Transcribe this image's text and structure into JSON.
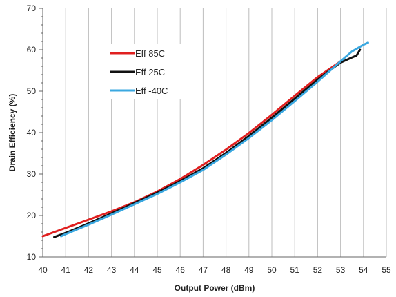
{
  "chart_data": {
    "type": "line",
    "title": "",
    "xlabel": "Output Power (dBm)",
    "ylabel": "Drain Efficiency (%)",
    "xlim": [
      40,
      55
    ],
    "ylim": [
      10,
      70
    ],
    "x_ticks": [
      40,
      41,
      42,
      43,
      44,
      45,
      46,
      47,
      48,
      49,
      50,
      51,
      52,
      53,
      54,
      55
    ],
    "y_ticks": [
      10,
      20,
      30,
      40,
      50,
      60,
      70
    ],
    "grid": {
      "vertical": true,
      "horizontal": false
    },
    "legend_position": "upper-left",
    "series": [
      {
        "name": "Eff 85C",
        "color": "#e02020",
        "points": [
          [
            40.0,
            15.0
          ],
          [
            41.0,
            17.0
          ],
          [
            42.0,
            19.0
          ],
          [
            43.0,
            21.0
          ],
          [
            44.0,
            23.2
          ],
          [
            45.0,
            25.8
          ],
          [
            46.0,
            28.8
          ],
          [
            47.0,
            32.2
          ],
          [
            48.0,
            35.9
          ],
          [
            49.0,
            39.9
          ],
          [
            50.0,
            44.3
          ],
          [
            51.0,
            48.9
          ],
          [
            52.0,
            53.4
          ],
          [
            53.0,
            57.2
          ]
        ]
      },
      {
        "name": "Eff 25C",
        "color": "#111111",
        "points": [
          [
            40.5,
            14.8
          ],
          [
            41.0,
            15.8
          ],
          [
            42.0,
            18.1
          ],
          [
            43.0,
            20.5
          ],
          [
            44.0,
            23.0
          ],
          [
            45.0,
            25.5
          ],
          [
            46.0,
            28.3
          ],
          [
            47.0,
            31.4
          ],
          [
            48.0,
            35.1
          ],
          [
            49.0,
            39.2
          ],
          [
            50.0,
            43.6
          ],
          [
            51.0,
            48.2
          ],
          [
            52.0,
            52.8
          ],
          [
            52.5,
            54.9
          ],
          [
            53.0,
            56.9
          ],
          [
            53.4,
            57.9
          ],
          [
            53.7,
            58.6
          ],
          [
            53.85,
            60.0
          ]
        ]
      },
      {
        "name": "Eff -40C",
        "color": "#3ba8e0",
        "points": [
          [
            40.8,
            15.0
          ],
          [
            41.0,
            15.5
          ],
          [
            42.0,
            17.8
          ],
          [
            43.0,
            20.2
          ],
          [
            44.0,
            22.7
          ],
          [
            45.0,
            25.2
          ],
          [
            46.0,
            28.0
          ],
          [
            47.0,
            31.0
          ],
          [
            48.0,
            34.7
          ],
          [
            49.0,
            38.7
          ],
          [
            50.0,
            43.0
          ],
          [
            51.0,
            47.6
          ],
          [
            52.0,
            52.3
          ],
          [
            53.0,
            57.2
          ],
          [
            53.5,
            59.6
          ],
          [
            54.0,
            61.2
          ],
          [
            54.2,
            61.7
          ]
        ]
      }
    ]
  }
}
